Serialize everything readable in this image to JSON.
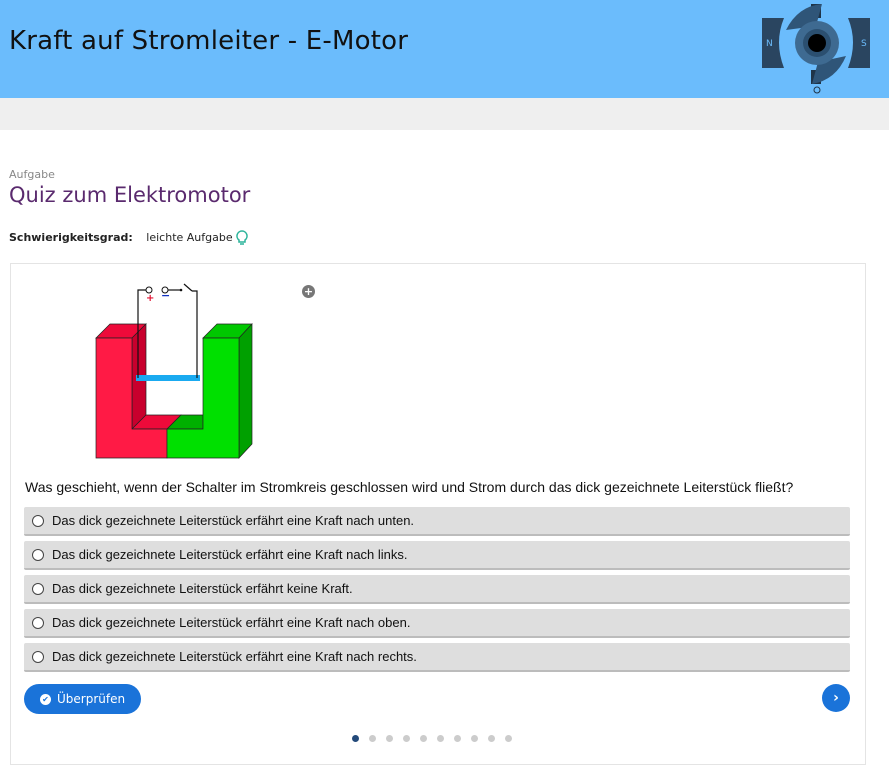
{
  "header": {
    "title": "Kraft auf Stromleiter - E-Motor",
    "logo": {
      "pole_left": "N",
      "pole_right": "S"
    }
  },
  "task": {
    "kicker": "Aufgabe",
    "title": "Quiz zum Elektromotor",
    "difficulty_label": "Schwierigkeitsgrad:",
    "difficulty_value": "leichte Aufgabe"
  },
  "figure": {
    "plus": "+",
    "minus": "−"
  },
  "question": "Was geschieht, wenn der Schalter im Stromkreis geschlossen wird und Strom durch das dick gezeichnete Leiterstück fließt?",
  "options": [
    "Das dick gezeichnete Leiterstück erfährt eine Kraft nach unten.",
    "Das dick gezeichnete Leiterstück erfährt eine Kraft nach links.",
    "Das dick gezeichnete Leiterstück erfährt keine Kraft.",
    "Das dick gezeichnete Leiterstück erfährt eine Kraft nach oben.",
    "Das dick gezeichnete Leiterstück erfährt eine Kraft nach rechts."
  ],
  "buttons": {
    "check": "Überprüfen",
    "check_icon": "✔",
    "next_icon": "›",
    "zoom_icon": "+"
  },
  "pagination": {
    "total": 10,
    "current": 1
  },
  "colors": {
    "header": "#6bbcfc",
    "accent": "#1a73d9",
    "title": "#5a2a6e"
  }
}
